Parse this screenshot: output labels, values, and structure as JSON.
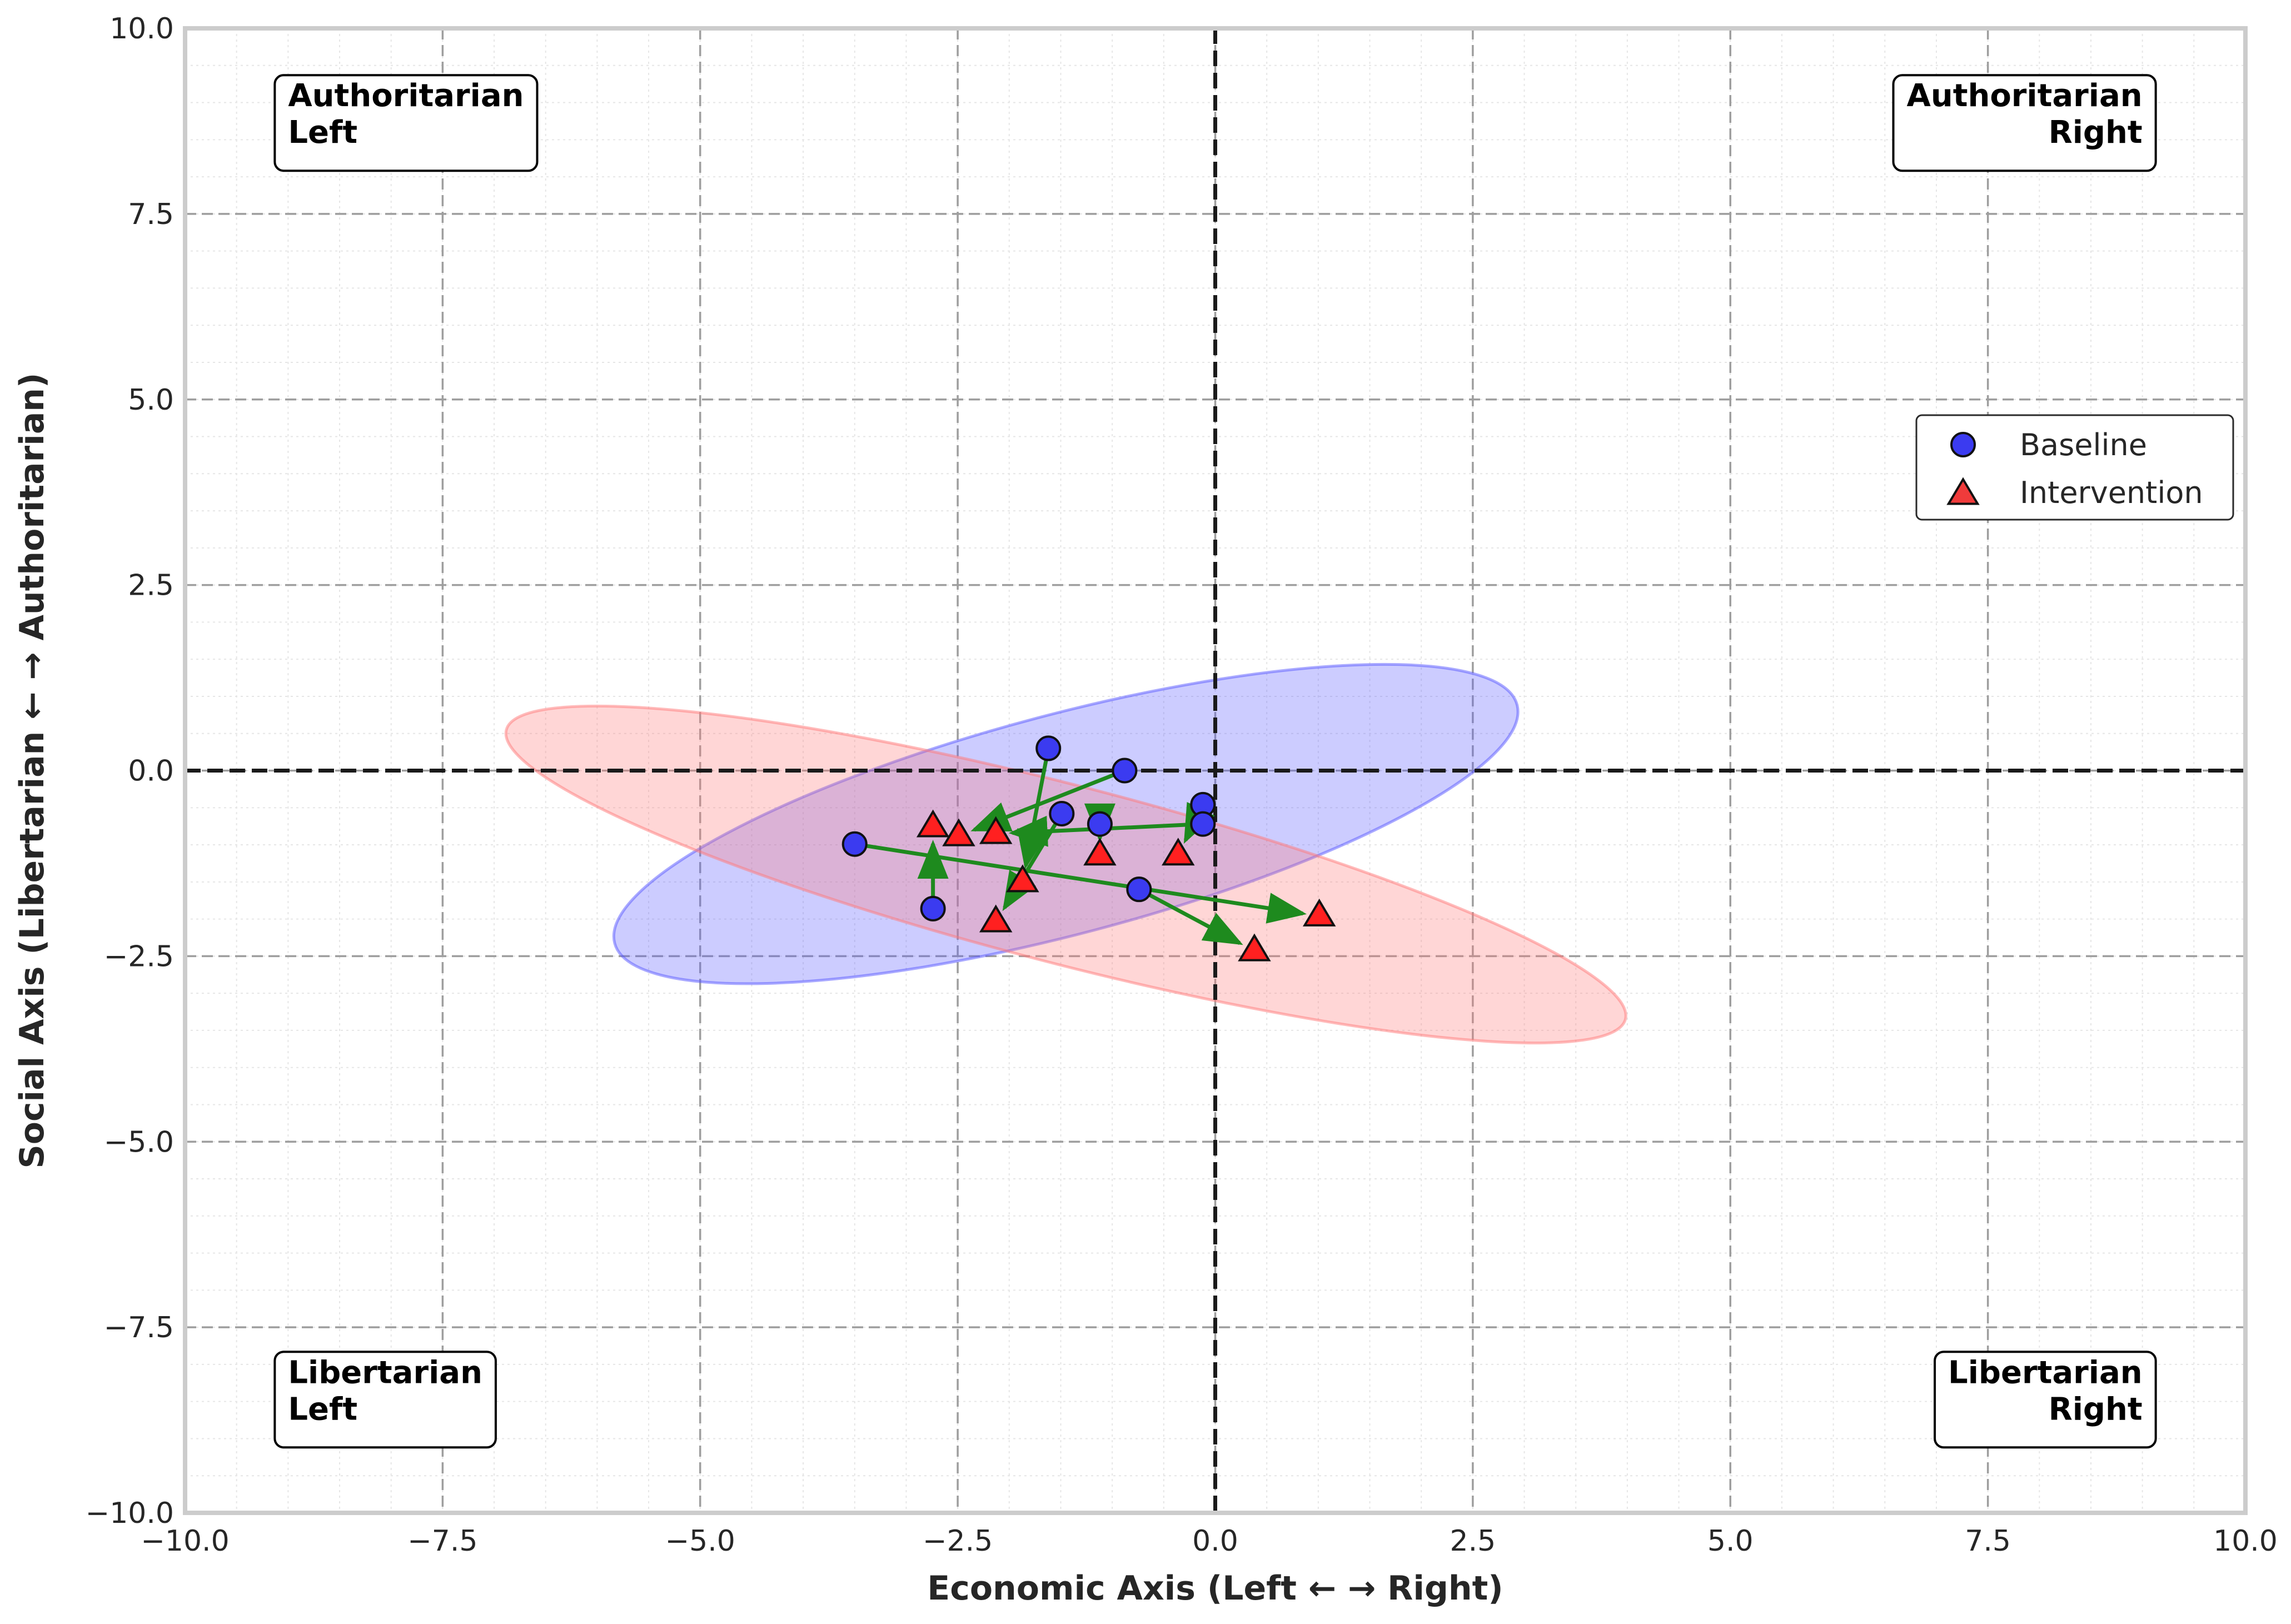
{
  "chart_data": {
    "type": "scatter",
    "xlabel": "Economic Axis (Left ← → Right)",
    "ylabel": "Social Axis (Libertarian ← → Authoritarian)",
    "xlim": [
      -10,
      10
    ],
    "ylim": [
      -10,
      10
    ],
    "x_ticks": [
      -10,
      -7.5,
      -5,
      -2.5,
      0,
      2.5,
      5,
      7.5,
      10
    ],
    "y_ticks": [
      -10,
      -7.5,
      -5,
      -2.5,
      0,
      2.5,
      5,
      7.5,
      10
    ],
    "x_tick_labels": [
      "−10.0",
      "−7.5",
      "−5.0",
      "−2.5",
      "0.0",
      "2.5",
      "5.0",
      "7.5",
      "10.0"
    ],
    "y_tick_labels": [
      "−10.0",
      "−7.5",
      "−5.0",
      "−2.5",
      "0.0",
      "2.5",
      "5.0",
      "7.5",
      "10.0"
    ],
    "grid": true,
    "reference_lines": {
      "x": 0,
      "y": 0,
      "style": "dashed"
    },
    "quadrant_labels": [
      {
        "lines": [
          "Authoritarian",
          "Left"
        ],
        "position": "top-left"
      },
      {
        "lines": [
          "Authoritarian",
          "Right"
        ],
        "position": "top-right"
      },
      {
        "lines": [
          "Libertarian",
          "Left"
        ],
        "position": "bottom-left"
      },
      {
        "lines": [
          "Libertarian",
          "Right"
        ],
        "position": "bottom-right"
      }
    ],
    "legend": {
      "position": "center-right",
      "entries": [
        {
          "label": "Baseline",
          "marker": "circle",
          "color": "#3b3bf0"
        },
        {
          "label": "Intervention",
          "marker": "triangle",
          "color": "#f03b3b"
        }
      ]
    },
    "series": [
      {
        "name": "Baseline",
        "marker": "circle",
        "color": "#3b3bf0",
        "points": [
          {
            "x": -1.62,
            "y": 0.3
          },
          {
            "x": -0.88,
            "y": 0.0
          },
          {
            "x": -0.12,
            "y": -0.46
          },
          {
            "x": -0.12,
            "y": -0.72
          },
          {
            "x": -1.49,
            "y": -0.58
          },
          {
            "x": -1.12,
            "y": -0.72
          },
          {
            "x": -3.5,
            "y": -0.99
          },
          {
            "x": -0.74,
            "y": -1.6
          },
          {
            "x": -2.74,
            "y": -1.86
          }
        ]
      },
      {
        "name": "Intervention",
        "marker": "triangle",
        "color": "#f03b3b",
        "points": [
          {
            "x": -1.87,
            "y": -1.5
          },
          {
            "x": -2.49,
            "y": -0.88
          },
          {
            "x": -0.36,
            "y": -1.14
          },
          {
            "x": -2.13,
            "y": -0.85
          },
          {
            "x": -2.13,
            "y": -2.04
          },
          {
            "x": -1.12,
            "y": -1.14
          },
          {
            "x": 1.01,
            "y": -1.96
          },
          {
            "x": 0.38,
            "y": -2.43
          },
          {
            "x": -2.74,
            "y": -0.76
          }
        ]
      }
    ],
    "arrows_color": "#1e8a1e",
    "ellipses": [
      {
        "series": "Baseline",
        "center": [
          -1.45,
          -0.72
        ],
        "semi_major": 4.53,
        "semi_minor": 1.48,
        "angle_deg": 14.8,
        "color": "#5555ff"
      },
      {
        "series": "Intervention",
        "center": [
          -1.45,
          -1.4
        ],
        "semi_major": 5.61,
        "semi_minor": 1.2,
        "angle_deg": -14.5,
        "color": "#ff7777"
      }
    ]
  }
}
